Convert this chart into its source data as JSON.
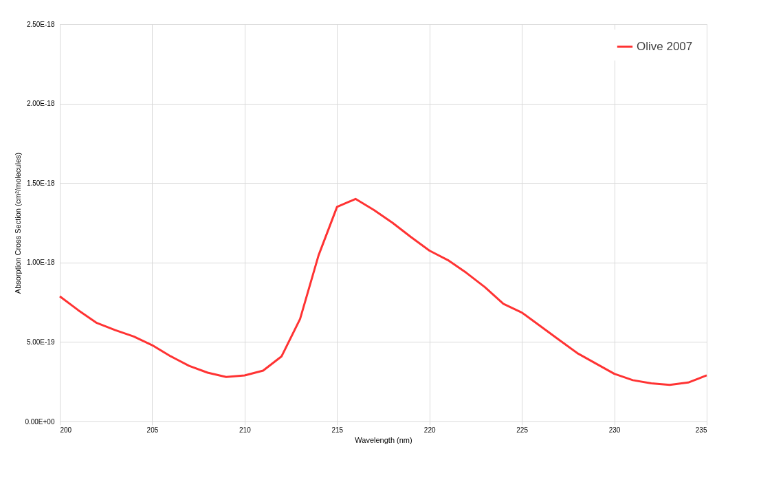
{
  "chart_data": {
    "type": "line",
    "xlabel": "Wavelength (nm)",
    "ylabel": "Absorption Cross Section (cm²/molecules)",
    "x": [
      200,
      201,
      202,
      203,
      204,
      205,
      206,
      207,
      208,
      209,
      210,
      211,
      212,
      213,
      214,
      215,
      216,
      217,
      218,
      219,
      220,
      221,
      222,
      223,
      224,
      225,
      226,
      227,
      228,
      229,
      230,
      231,
      232,
      233,
      234,
      235
    ],
    "series": [
      {
        "name": "Olive 2007",
        "color": "#ff3333",
        "values": [
          7.87e-19,
          7e-19,
          6.2e-19,
          5.75e-19,
          5.35e-19,
          4.8e-19,
          4.1e-19,
          3.5e-19,
          3.07e-19,
          2.8e-19,
          2.9e-19,
          3.2e-19,
          4.1e-19,
          6.45e-19,
          1.045e-18,
          1.35e-18,
          1.4e-18,
          1.33e-18,
          1.25e-18,
          1.16e-18,
          1.075e-18,
          1.015e-18,
          9.35e-19,
          8.45e-19,
          7.4e-19,
          6.85e-19,
          6e-19,
          5.15e-19,
          4.3e-19,
          3.65e-19,
          3e-19,
          2.6e-19,
          2.4e-19,
          2.3e-19,
          2.45e-19,
          2.9e-19
        ]
      }
    ],
    "xlim": [
      200,
      235
    ],
    "xticks": [
      200,
      205,
      210,
      215,
      220,
      225,
      230,
      235
    ],
    "ylim": [
      0,
      2.5e-18
    ],
    "yticks": [
      {
        "value": 0,
        "label": "0.00E+00"
      },
      {
        "value": 5e-19,
        "label": "5.00E-19"
      },
      {
        "value": 1e-18,
        "label": "1.00E-18"
      },
      {
        "value": 1.5e-18,
        "label": "1.50E-18"
      },
      {
        "value": 2e-18,
        "label": "2.00E-18"
      },
      {
        "value": 2.5e-18,
        "label": "2.50E-18"
      }
    ],
    "grid": true,
    "legend": "top right",
    "marker": "none",
    "line_style": "solid"
  }
}
